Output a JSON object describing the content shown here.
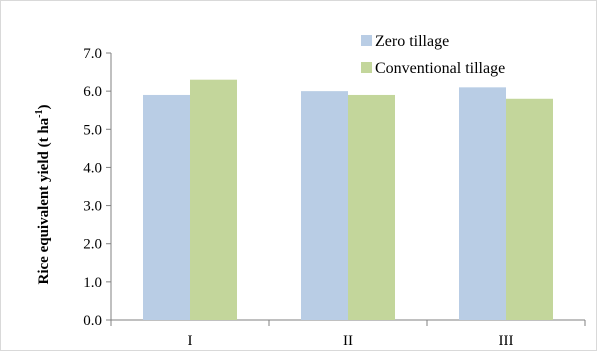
{
  "chart_data": {
    "type": "bar",
    "categories": [
      "I",
      "II",
      "III"
    ],
    "series": [
      {
        "name": "Zero tillage",
        "values": [
          5.9,
          6.0,
          6.1
        ],
        "color": "#b9cde5"
      },
      {
        "name": "Conventional tillage",
        "values": [
          6.3,
          5.9,
          5.8
        ],
        "color": "#c3d69b"
      }
    ],
    "xlabel": "",
    "ylabel": "Rice equivalent yield (t ha",
    "ylabel_sup": "-1",
    "ylabel_close": ")",
    "ylim": [
      0,
      7
    ],
    "yticks": [
      "0.0",
      "1.0",
      "2.0",
      "3.0",
      "4.0",
      "5.0",
      "6.0",
      "7.0"
    ],
    "grid": false,
    "legend_position": "top-right"
  }
}
